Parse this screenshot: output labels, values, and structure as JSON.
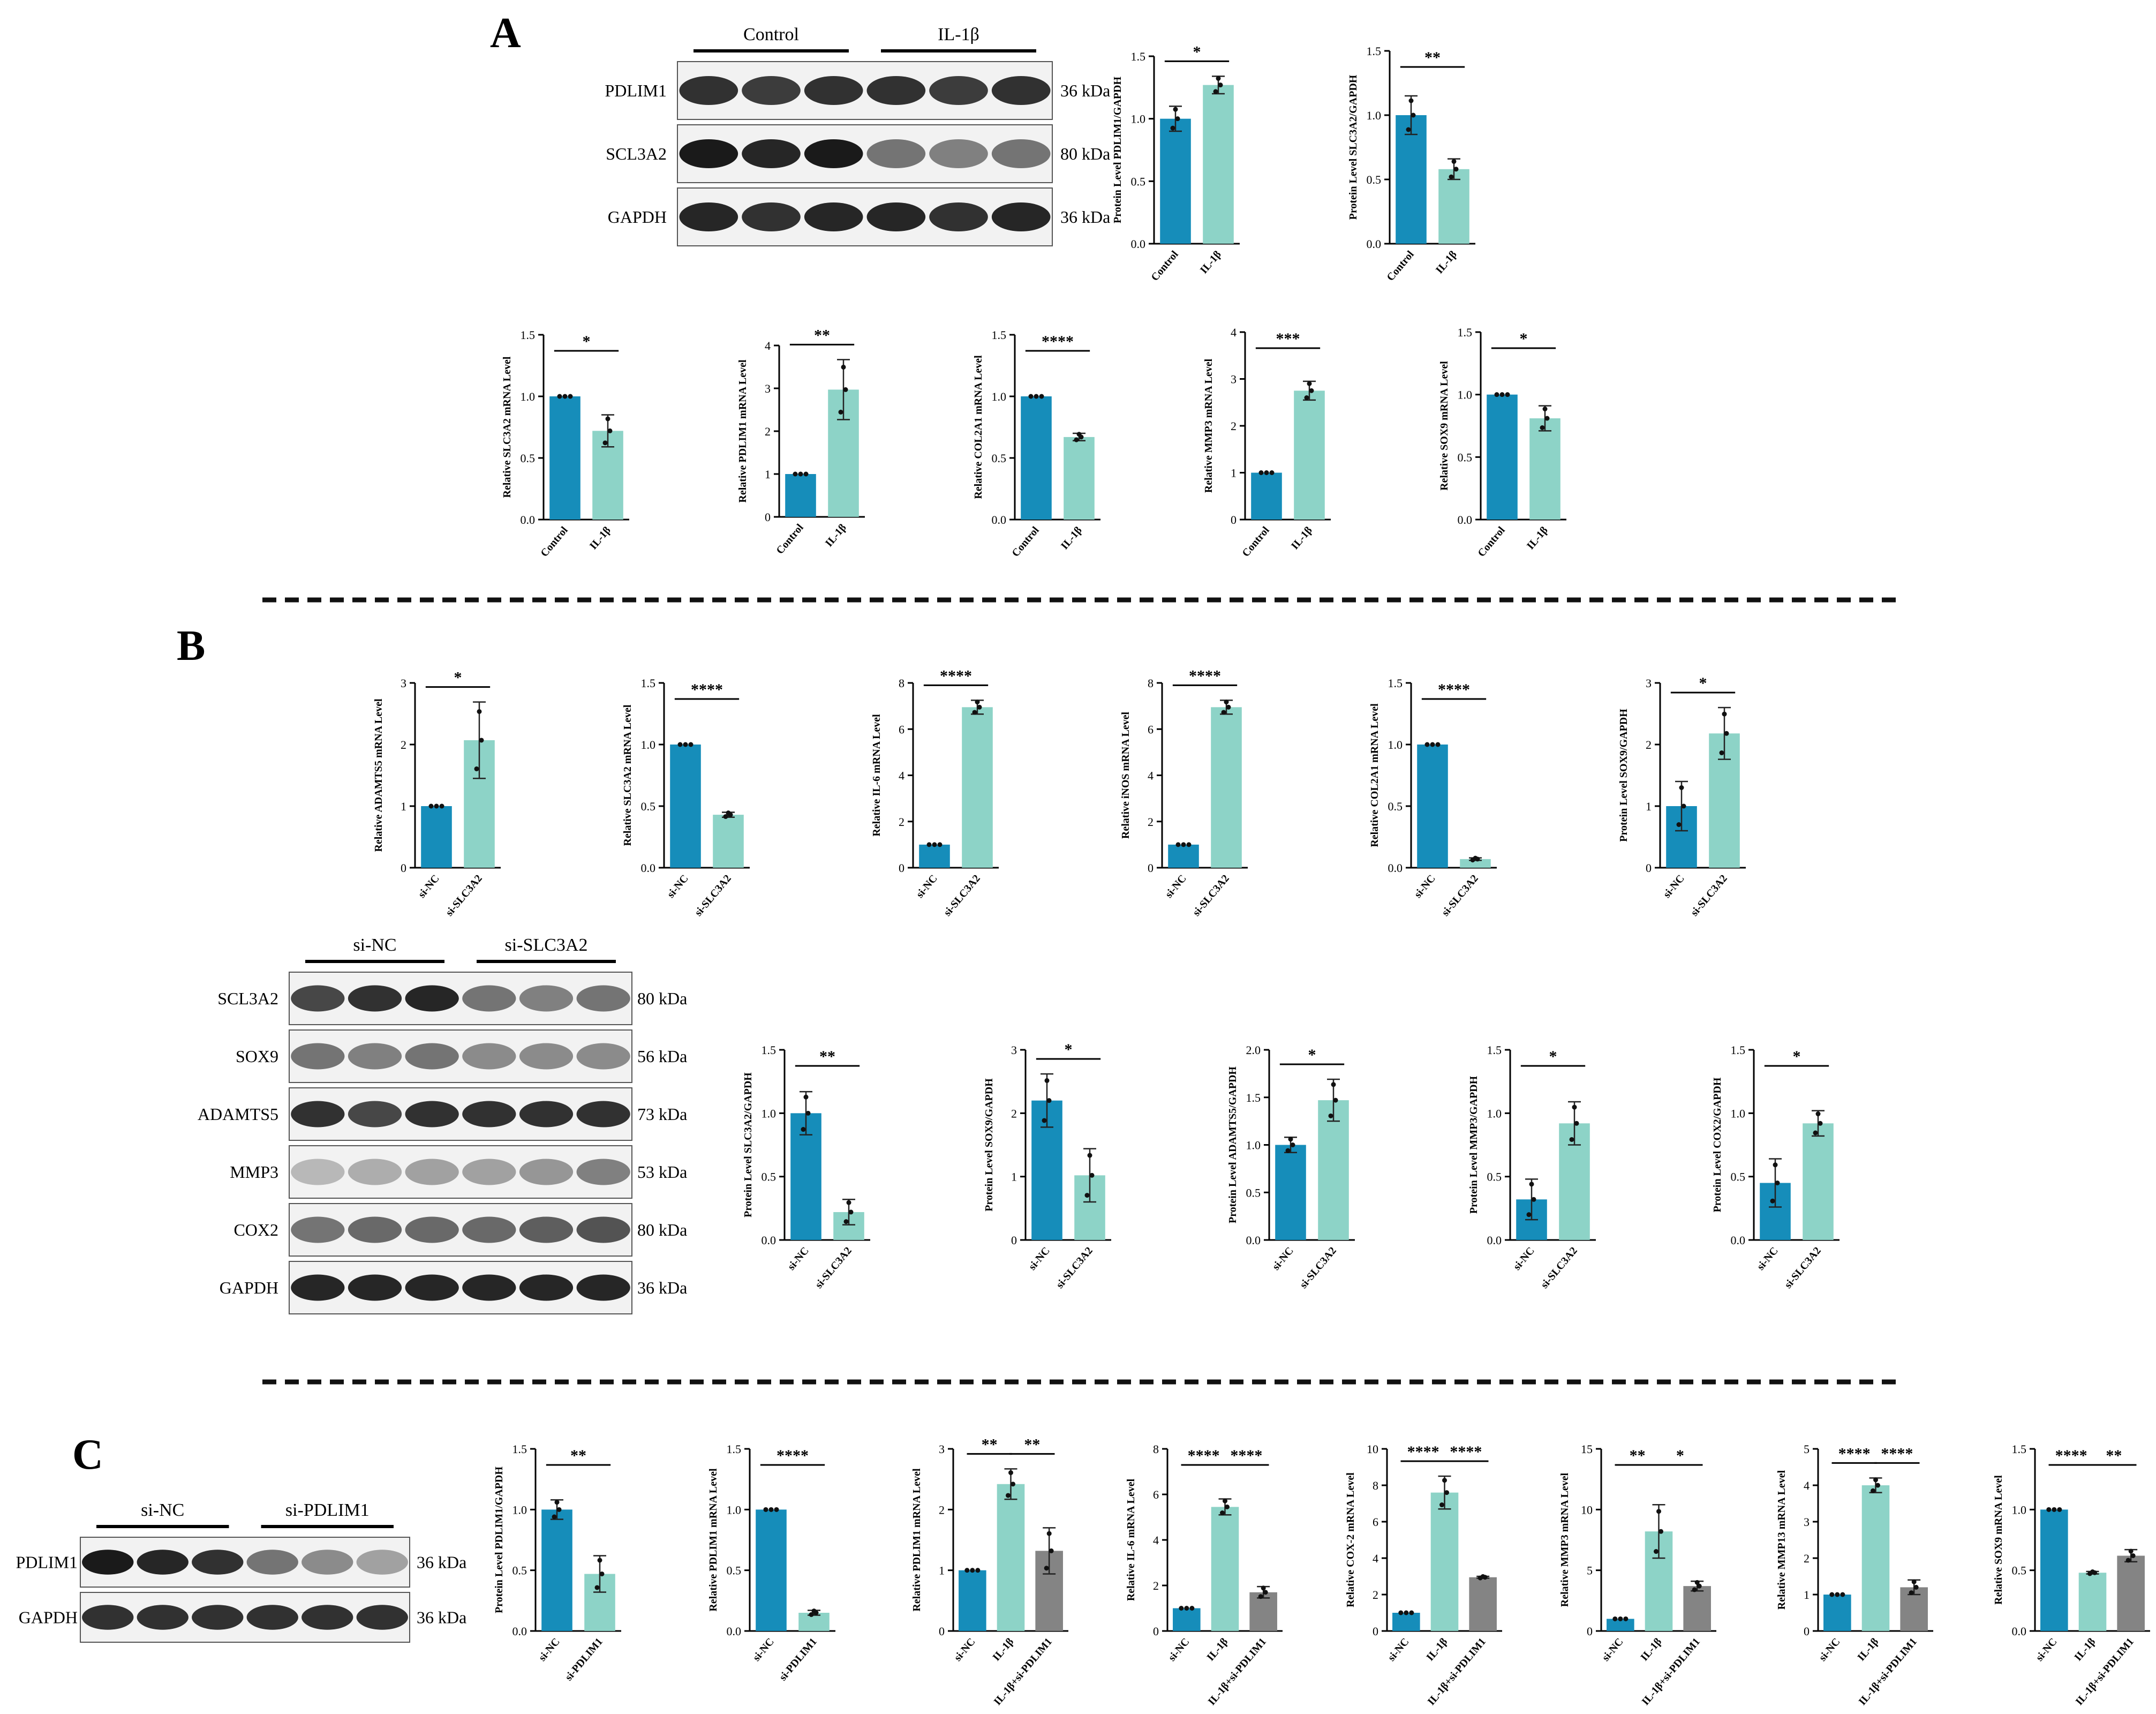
{
  "colors": {
    "control": "#168dba",
    "treat": "#8dd3c7",
    "third": "#848484",
    "blot_bg": "#ffffff",
    "band": "#1a1a1a"
  },
  "panels": [
    {
      "label": "A"
    },
    {
      "label": "B"
    },
    {
      "label": "C"
    }
  ],
  "blots": [
    {
      "groups": [
        "Control",
        "IL-1β"
      ],
      "rows": [
        {
          "protein": "PDLIM1",
          "kda": "36 kDa"
        },
        {
          "protein": "SCL3A2",
          "kda": "80 kDa"
        },
        {
          "protein": "GAPDH",
          "kda": "36 kDa"
        }
      ]
    },
    {
      "groups": [
        "si-NC",
        "si-SLC3A2"
      ],
      "rows": [
        {
          "protein": "SCL3A2",
          "kda": "80 kDa"
        },
        {
          "protein": "SOX9",
          "kda": "56 kDa"
        },
        {
          "protein": "ADAMTS5",
          "kda": "73 kDa"
        },
        {
          "protein": "MMP3",
          "kda": "53 kDa"
        },
        {
          "protein": "COX2",
          "kda": "80 kDa"
        },
        {
          "protein": "GAPDH",
          "kda": "36 kDa"
        }
      ]
    },
    {
      "groups": [
        "si-NC",
        "si-PDLIM1"
      ],
      "rows": [
        {
          "protein": "PDLIM1",
          "kda": "36 kDa"
        },
        {
          "protein": "GAPDH",
          "kda": "36 kDa"
        }
      ]
    }
  ],
  "chart_data": [
    {
      "type": "bar",
      "panel": "A",
      "ylabel": "Protein Level PDLIM1/GAPDH",
      "categories": [
        "Control",
        "IL-1β"
      ],
      "values": [
        1.0,
        1.27
      ],
      "errors": [
        0.1,
        0.07
      ],
      "ylim": [
        0,
        1.5
      ],
      "yticks": [
        "0.0",
        "0.5",
        "1.0",
        "1.5"
      ],
      "significance": [
        {
          "pair": [
            0,
            1
          ],
          "label": "*"
        }
      ]
    },
    {
      "type": "bar",
      "panel": "A",
      "ylabel": "Protein Level SLC3A2/GAPDH",
      "categories": [
        "Control",
        "IL-1β"
      ],
      "values": [
        1.0,
        0.58
      ],
      "errors": [
        0.15,
        0.08
      ],
      "ylim": [
        0,
        1.5
      ],
      "yticks": [
        "0.0",
        "0.5",
        "1.0",
        "1.5"
      ],
      "significance": [
        {
          "pair": [
            0,
            1
          ],
          "label": "**"
        }
      ]
    },
    {
      "type": "bar",
      "panel": "A",
      "ylabel": "Relative SLC3A2 mRNA Level",
      "categories": [
        "Control",
        "IL-1β"
      ],
      "values": [
        1.0,
        0.72
      ],
      "errors": [
        0.0,
        0.13
      ],
      "ylim": [
        0,
        1.5
      ],
      "yticks": [
        "0.0",
        "0.5",
        "1.0",
        "1.5"
      ],
      "significance": [
        {
          "pair": [
            0,
            1
          ],
          "label": "*"
        }
      ]
    },
    {
      "type": "bar",
      "panel": "A",
      "ylabel": "Relative PDLIM1 mRNA Level",
      "categories": [
        "Control",
        "IL-1β"
      ],
      "values": [
        1.0,
        2.97
      ],
      "errors": [
        0.0,
        0.7
      ],
      "ylim": [
        0,
        4
      ],
      "yticks": [
        "0",
        "1",
        "2",
        "3",
        "4"
      ],
      "significance": [
        {
          "pair": [
            0,
            1
          ],
          "label": "**"
        }
      ]
    },
    {
      "type": "bar",
      "panel": "A",
      "ylabel": "Relative COL2A1 mRNA Level",
      "categories": [
        "Control",
        "IL-1β"
      ],
      "values": [
        1.0,
        0.67
      ],
      "errors": [
        0.0,
        0.03
      ],
      "ylim": [
        0,
        1.5
      ],
      "yticks": [
        "0.0",
        "0.5",
        "1.0",
        "1.5"
      ],
      "significance": [
        {
          "pair": [
            0,
            1
          ],
          "label": "****"
        }
      ]
    },
    {
      "type": "bar",
      "panel": "A",
      "ylabel": "Relative MMP3 mRNA Level",
      "categories": [
        "Control",
        "IL-1β"
      ],
      "values": [
        1.0,
        2.75
      ],
      "errors": [
        0.0,
        0.2
      ],
      "ylim": [
        0,
        4
      ],
      "yticks": [
        "0",
        "1",
        "2",
        "3",
        "4"
      ],
      "significance": [
        {
          "pair": [
            0,
            1
          ],
          "label": "***"
        }
      ]
    },
    {
      "type": "bar",
      "panel": "A",
      "ylabel": "Relative SOX9 mRNA Level",
      "categories": [
        "Control",
        "IL-1β"
      ],
      "values": [
        1.0,
        0.81
      ],
      "errors": [
        0.0,
        0.1
      ],
      "ylim": [
        0,
        1.5
      ],
      "yticks": [
        "0.0",
        "0.5",
        "1.0",
        "1.5"
      ],
      "significance": [
        {
          "pair": [
            0,
            1
          ],
          "label": "*"
        }
      ]
    },
    {
      "type": "bar",
      "panel": "B",
      "ylabel": "Relative ADAMTS5 mRNA Level",
      "categories": [
        "si-NC",
        "si-SLC3A2"
      ],
      "values": [
        1.0,
        2.07
      ],
      "errors": [
        0.0,
        0.62
      ],
      "ylim": [
        0,
        3
      ],
      "yticks": [
        "0",
        "1",
        "2",
        "3"
      ],
      "significance": [
        {
          "pair": [
            0,
            1
          ],
          "label": "*"
        }
      ]
    },
    {
      "type": "bar",
      "panel": "B",
      "ylabel": "Relative SLC3A2 mRNA Level",
      "categories": [
        "si-NC",
        "si-SLC3A2"
      ],
      "values": [
        1.0,
        0.43
      ],
      "errors": [
        0.0,
        0.02
      ],
      "ylim": [
        0,
        1.5
      ],
      "yticks": [
        "0.0",
        "0.5",
        "1.0",
        "1.5"
      ],
      "significance": [
        {
          "pair": [
            0,
            1
          ],
          "label": "****"
        }
      ]
    },
    {
      "type": "bar",
      "panel": "B",
      "ylabel": "Relative IL-6 mRNA Level",
      "categories": [
        "si-NC",
        "si-SLC3A2"
      ],
      "values": [
        1.0,
        6.95
      ],
      "errors": [
        0.0,
        0.3
      ],
      "ylim": [
        0,
        8
      ],
      "yticks": [
        "0",
        "2",
        "4",
        "6",
        "8"
      ],
      "significance": [
        {
          "pair": [
            0,
            1
          ],
          "label": "****"
        }
      ]
    },
    {
      "type": "bar",
      "panel": "B",
      "ylabel": "Relative iNOS mRNA Level",
      "categories": [
        "si-NC",
        "si-SLC3A2"
      ],
      "values": [
        1.0,
        6.95
      ],
      "errors": [
        0.0,
        0.3
      ],
      "ylim": [
        0,
        8
      ],
      "yticks": [
        "0",
        "2",
        "4",
        "6",
        "8"
      ],
      "significance": [
        {
          "pair": [
            0,
            1
          ],
          "label": "****"
        }
      ]
    },
    {
      "type": "bar",
      "panel": "B",
      "ylabel": "Relative COL2A1 mRNA Level",
      "categories": [
        "si-NC",
        "si-SLC3A2"
      ],
      "values": [
        1.0,
        0.07
      ],
      "errors": [
        0.0,
        0.01
      ],
      "ylim": [
        0,
        1.5
      ],
      "yticks": [
        "0.0",
        "0.5",
        "1.0",
        "1.5"
      ],
      "significance": [
        {
          "pair": [
            0,
            1
          ],
          "label": "****"
        }
      ]
    },
    {
      "type": "bar",
      "panel": "B",
      "ylabel": "Protein Level SOX9/GAPDH",
      "categories": [
        "si-NC",
        "si-SLC3A2"
      ],
      "values": [
        1.0,
        2.18
      ],
      "errors": [
        0.4,
        0.42
      ],
      "ylim": [
        0,
        3
      ],
      "yticks": [
        "0",
        "1",
        "2",
        "3"
      ],
      "significance": [
        {
          "pair": [
            0,
            1
          ],
          "label": "*"
        }
      ]
    },
    {
      "type": "bar",
      "panel": "B",
      "ylabel": "Protein Level SLC3A2/GAPDH",
      "categories": [
        "si-NC",
        "si-SLC3A2"
      ],
      "values": [
        1.0,
        0.22
      ],
      "errors": [
        0.17,
        0.1
      ],
      "ylim": [
        0,
        1.5
      ],
      "yticks": [
        "0.0",
        "0.5",
        "1.0",
        "1.5"
      ],
      "significance": [
        {
          "pair": [
            0,
            1
          ],
          "label": "**"
        }
      ]
    },
    {
      "type": "bar",
      "panel": "B",
      "ylabel": "Protein Level SOX9/GAPDH",
      "categories": [
        "si-NC",
        "si-SLC3A2"
      ],
      "values": [
        2.2,
        1.02
      ],
      "errors": [
        0.42,
        0.42
      ],
      "ylim": [
        0,
        3
      ],
      "yticks": [
        "0",
        "1",
        "2",
        "3"
      ],
      "significance": [
        {
          "pair": [
            0,
            1
          ],
          "label": "*"
        }
      ]
    },
    {
      "type": "bar",
      "panel": "B",
      "ylabel": "Protein Level ADAMTS5/GAPDH",
      "categories": [
        "si-NC",
        "si-SLC3A2"
      ],
      "values": [
        1.0,
        1.47
      ],
      "errors": [
        0.08,
        0.22
      ],
      "ylim": [
        0,
        2.0
      ],
      "yticks": [
        "0.0",
        "0.5",
        "1.0",
        "1.5",
        "2.0"
      ],
      "significance": [
        {
          "pair": [
            0,
            1
          ],
          "label": "*"
        }
      ]
    },
    {
      "type": "bar",
      "panel": "B",
      "ylabel": "Protein Level MMP3/GAPDH",
      "categories": [
        "si-NC",
        "si-SLC3A2"
      ],
      "values": [
        0.32,
        0.92
      ],
      "errors": [
        0.16,
        0.17
      ],
      "ylim": [
        0,
        1.5
      ],
      "yticks": [
        "0.0",
        "0.5",
        "1.0",
        "1.5"
      ],
      "significance": [
        {
          "pair": [
            0,
            1
          ],
          "label": "*"
        }
      ]
    },
    {
      "type": "bar",
      "panel": "B",
      "ylabel": "Protein Level COX2/GAPDH",
      "categories": [
        "si-NC",
        "si-SLC3A2"
      ],
      "values": [
        0.45,
        0.92
      ],
      "errors": [
        0.19,
        0.1
      ],
      "ylim": [
        0,
        1.5
      ],
      "yticks": [
        "0.0",
        "0.5",
        "1.0",
        "1.5"
      ],
      "significance": [
        {
          "pair": [
            0,
            1
          ],
          "label": "*"
        }
      ]
    },
    {
      "type": "bar",
      "panel": "C",
      "ylabel": "Protein Level PDLIM1/GAPDH",
      "categories": [
        "si-NC",
        "si-PDLIM1"
      ],
      "values": [
        1.0,
        0.47
      ],
      "errors": [
        0.08,
        0.15
      ],
      "ylim": [
        0,
        1.5
      ],
      "yticks": [
        "0.0",
        "0.5",
        "1.0",
        "1.5"
      ],
      "significance": [
        {
          "pair": [
            0,
            1
          ],
          "label": "**"
        }
      ]
    },
    {
      "type": "bar",
      "panel": "C",
      "ylabel": "Relative PDLIM1 mRNA Level",
      "categories": [
        "si-NC",
        "si-PDLIM1"
      ],
      "values": [
        1.0,
        0.15
      ],
      "errors": [
        0.0,
        0.02
      ],
      "ylim": [
        0,
        1.5
      ],
      "yticks": [
        "0.0",
        "0.5",
        "1.0",
        "1.5"
      ],
      "significance": [
        {
          "pair": [
            0,
            1
          ],
          "label": "****"
        }
      ]
    },
    {
      "type": "bar",
      "panel": "C",
      "ylabel": "Relative PDLIM1 mRNA Level",
      "categories": [
        "si-NC",
        "IL-1β",
        "IL-1β+si-PDLIM1"
      ],
      "values": [
        1.0,
        2.42,
        1.32
      ],
      "errors": [
        0.0,
        0.25,
        0.38
      ],
      "ylim": [
        0,
        3
      ],
      "yticks": [
        "0",
        "1",
        "2",
        "3"
      ],
      "significance": [
        {
          "pair": [
            0,
            1
          ],
          "label": "**"
        },
        {
          "pair": [
            1,
            2
          ],
          "label": "**"
        }
      ]
    },
    {
      "type": "bar",
      "panel": "C",
      "ylabel": "Relative IL-6 mRNA Level",
      "categories": [
        "si-NC",
        "IL-1β",
        "IL-1β+si-PDLIM1"
      ],
      "values": [
        1.0,
        5.45,
        1.7
      ],
      "errors": [
        0.0,
        0.35,
        0.25
      ],
      "ylim": [
        0,
        8
      ],
      "yticks": [
        "0",
        "2",
        "4",
        "6",
        "8"
      ],
      "significance": [
        {
          "pair": [
            0,
            1
          ],
          "label": "****"
        },
        {
          "pair": [
            1,
            2
          ],
          "label": "****"
        }
      ]
    },
    {
      "type": "bar",
      "panel": "C",
      "ylabel": "Relative COX-2 mRNA Level",
      "categories": [
        "si-NC",
        "IL-1β",
        "IL-1β+si-PDLIM1"
      ],
      "values": [
        1.0,
        7.6,
        2.95
      ],
      "errors": [
        0.0,
        0.9,
        0.05
      ],
      "ylim": [
        0,
        10
      ],
      "yticks": [
        "0",
        "2",
        "4",
        "6",
        "8",
        "10"
      ],
      "significance": [
        {
          "pair": [
            0,
            1
          ],
          "label": "****"
        },
        {
          "pair": [
            1,
            2
          ],
          "label": "****"
        }
      ]
    },
    {
      "type": "bar",
      "panel": "C",
      "ylabel": "Relative MMP3 mRNA Level",
      "categories": [
        "si-NC",
        "IL-1β",
        "IL-1β+si-PDLIM1"
      ],
      "values": [
        1.0,
        8.2,
        3.7
      ],
      "errors": [
        0.0,
        2.2,
        0.4
      ],
      "ylim": [
        0,
        15
      ],
      "yticks": [
        "0",
        "5",
        "10",
        "15"
      ],
      "significance": [
        {
          "pair": [
            0,
            1
          ],
          "label": "**"
        },
        {
          "pair": [
            1,
            2
          ],
          "label": "*"
        }
      ]
    },
    {
      "type": "bar",
      "panel": "C",
      "ylabel": "Relative MMP13 mRNA Level",
      "categories": [
        "si-NC",
        "IL-1β",
        "IL-1β+si-PDLIM1"
      ],
      "values": [
        1.0,
        4.0,
        1.2
      ],
      "errors": [
        0.0,
        0.2,
        0.2
      ],
      "ylim": [
        0,
        5
      ],
      "yticks": [
        "0",
        "1",
        "2",
        "3",
        "4",
        "5"
      ],
      "significance": [
        {
          "pair": [
            0,
            1
          ],
          "label": "****"
        },
        {
          "pair": [
            1,
            2
          ],
          "label": "****"
        }
      ]
    },
    {
      "type": "bar",
      "panel": "C",
      "ylabel": "Relative SOX9 mRNA Level",
      "categories": [
        "si-NC",
        "IL-1β",
        "IL-1β+si-PDLIM1"
      ],
      "values": [
        1.0,
        0.48,
        0.62
      ],
      "errors": [
        0.0,
        0.01,
        0.05
      ],
      "ylim": [
        0,
        1.5
      ],
      "yticks": [
        "0.0",
        "0.5",
        "1.0",
        "1.5"
      ],
      "significance": [
        {
          "pair": [
            0,
            1
          ],
          "label": "****"
        },
        {
          "pair": [
            1,
            2
          ],
          "label": "**"
        }
      ]
    }
  ]
}
